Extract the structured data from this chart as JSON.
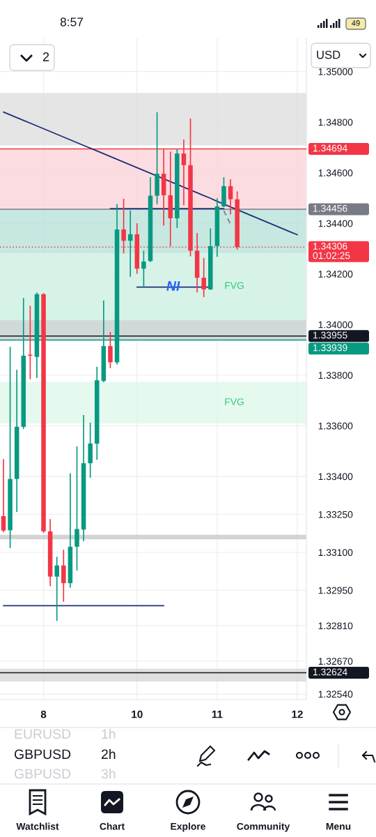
{
  "chart_data": {
    "type": "candlestick",
    "title": "GBPUSD",
    "subtitle": "2h",
    "categories": [
      null,
      null,
      null,
      null,
      null,
      null,
      "8",
      null,
      null,
      null,
      null,
      null,
      null,
      null,
      null,
      null,
      null,
      null,
      null,
      null,
      "10",
      null,
      null,
      null,
      null,
      null,
      null,
      null,
      null,
      null,
      null,
      null,
      "11",
      null,
      null,
      null,
      null,
      null,
      null,
      null,
      null,
      null,
      null,
      null,
      "12"
    ],
    "ohlc": [
      [
        1.33243,
        1.33466,
        1.33182,
        1.33186
      ],
      [
        1.33187,
        1.3391,
        1.33119,
        1.3339
      ],
      [
        1.3339,
        1.33819,
        1.33262,
        1.33596
      ],
      [
        1.33596,
        1.34103,
        1.3359,
        1.33877
      ],
      [
        1.33881,
        1.34072,
        1.33786,
        1.33877
      ],
      [
        1.33872,
        1.34125,
        1.33791,
        1.3412
      ],
      [
        1.3412,
        1.34122,
        1.33179,
        1.33183
      ],
      [
        1.33183,
        1.33229,
        1.32969,
        1.33004
      ],
      [
        1.33004,
        1.3308,
        1.32831,
        1.33048
      ],
      [
        1.33048,
        1.33108,
        1.32907,
        1.32978
      ],
      [
        1.32978,
        1.3341,
        1.32963,
        1.33122
      ],
      [
        1.33122,
        1.33516,
        1.3303,
        1.33192
      ],
      [
        1.3319,
        1.3364,
        1.33146,
        1.33452
      ],
      [
        1.33452,
        1.3361,
        1.33397,
        1.3353
      ],
      [
        1.33529,
        1.33831,
        1.33468,
        1.3378
      ],
      [
        1.33777,
        1.34093,
        1.33775,
        1.33915
      ],
      [
        1.33915,
        1.33968,
        1.3383,
        1.33851
      ],
      [
        1.33851,
        1.34474,
        1.33844,
        1.34376
      ],
      [
        1.34376,
        1.34495,
        1.34283,
        1.34331
      ],
      [
        1.34331,
        1.34449,
        1.34191,
        1.34357
      ],
      [
        1.34357,
        1.34398,
        1.34203,
        1.34221
      ],
      [
        1.34221,
        1.3429,
        1.34148,
        1.34249
      ],
      [
        1.34251,
        1.3458,
        1.34249,
        1.34509
      ],
      [
        1.34509,
        1.34837,
        1.34478,
        1.34596
      ],
      [
        1.34596,
        1.3469,
        1.34393,
        1.34511
      ],
      [
        1.34511,
        1.34681,
        1.34311,
        1.3442
      ],
      [
        1.3442,
        1.3469,
        1.34384,
        1.34676
      ],
      [
        1.34676,
        1.34729,
        1.34474,
        1.3463
      ],
      [
        1.3463,
        1.34812,
        1.34272,
        1.34292
      ],
      [
        1.34292,
        1.34359,
        1.34129,
        1.34185
      ],
      [
        1.34185,
        1.34261,
        1.34111,
        1.34139
      ],
      [
        1.34139,
        1.34378,
        1.34139,
        1.3431
      ],
      [
        1.3431,
        1.34497,
        1.3427,
        1.34467
      ],
      [
        1.34467,
        1.3458,
        1.34466,
        1.34547
      ],
      [
        1.34547,
        1.34572,
        1.34437,
        1.34495
      ],
      [
        1.34495,
        1.34524,
        1.34299,
        1.34306
      ],
      null,
      null,
      null,
      null,
      null,
      null,
      null,
      null,
      null
    ],
    "colors": [
      "#f23645",
      "#089981",
      "#089981",
      "#089981",
      "#f23645",
      "#089981",
      "#f23645",
      "#f23645",
      "#089981",
      "#f23645",
      "#089981",
      "#089981",
      "#089981",
      "#089981",
      "#089981",
      "#089981",
      "#f23645",
      "#089981",
      "#f23645",
      "#089981",
      "#f23645",
      "#089981",
      "#089981",
      "#089981",
      "#f23645",
      "#f23645",
      "#089981",
      "#f23645",
      "#f23645",
      "#f23645",
      "#f23645",
      "#089981",
      "#089981",
      "#089981",
      "#f23645",
      "#f23645",
      null,
      null,
      null,
      null,
      null,
      null,
      null,
      null,
      null
    ],
    "series": [
      {
        "type": "line",
        "color": "#1f2f7a",
        "line_style": "solid",
        "values": [
          1.3484,
          1.34829,
          1.34818,
          1.34807,
          1.34796,
          1.34785,
          1.34774,
          1.34763,
          1.34752,
          1.34741,
          1.3473,
          1.34719,
          1.34708,
          1.34697,
          1.34686,
          1.34675,
          1.34664,
          1.34653,
          1.34642,
          1.34631,
          1.3462,
          1.34609,
          1.34598,
          1.34587,
          1.34576,
          1.34565,
          1.34554,
          1.34543,
          1.34532,
          1.34521,
          1.3451,
          1.34499,
          1.34487,
          1.34476,
          1.34465,
          1.34454,
          1.34443,
          1.34432,
          1.34421,
          1.3441,
          1.34399,
          1.34388,
          1.34377,
          1.34366,
          1.34355
        ]
      },
      {
        "type": "line",
        "color": "#1f2f7a",
        "line_style": "solid",
        "values": [
          null,
          null,
          null,
          null,
          null,
          null,
          null,
          null,
          null,
          null,
          null,
          null,
          null,
          null,
          null,
          null,
          1.34458,
          1.34458,
          1.34458,
          1.34458,
          1.34458,
          1.34458,
          1.34458,
          1.34458,
          1.34458,
          1.34458,
          1.34458,
          1.34458,
          1.34458,
          1.34458,
          1.34458,
          1.34458,
          1.34458,
          1.34458,
          null,
          null,
          null,
          null,
          null,
          null,
          null,
          null,
          null,
          null,
          null
        ]
      },
      {
        "type": "line",
        "color": "#1f2f7a",
        "line_style": "solid",
        "values": [
          null,
          null,
          null,
          null,
          null,
          null,
          null,
          null,
          null,
          null,
          null,
          null,
          null,
          null,
          null,
          null,
          null,
          null,
          null,
          null,
          1.34148,
          1.34148,
          1.34148,
          1.34148,
          1.34148,
          1.34148,
          1.34148,
          1.34148,
          1.34148,
          1.34148,
          1.34148,
          1.34148,
          null,
          null,
          null,
          null,
          null,
          null,
          null,
          null,
          null,
          null,
          null,
          null,
          null
        ]
      },
      {
        "type": "line",
        "color": "#1f2f7a",
        "line_style": "solid",
        "values": [
          1.32889,
          1.32889,
          1.32889,
          1.32889,
          1.32889,
          1.32889,
          1.32889,
          1.32889,
          1.32889,
          1.32889,
          1.32889,
          1.32889,
          1.32889,
          1.32889,
          1.32889,
          1.32889,
          1.32889,
          1.32889,
          1.32889,
          1.32889,
          1.32889,
          1.32889,
          1.32889,
          1.32889,
          1.32889,
          null,
          null,
          null,
          null,
          null,
          null,
          null,
          null,
          null,
          null,
          null,
          null,
          null,
          null,
          null,
          null,
          null,
          null,
          null,
          null
        ]
      },
      {
        "type": "line",
        "color": "#787b86",
        "line_style": "dashed",
        "values": [
          null,
          null,
          null,
          null,
          null,
          null,
          null,
          null,
          null,
          null,
          null,
          null,
          null,
          null,
          null,
          null,
          null,
          null,
          null,
          null,
          null,
          null,
          null,
          null,
          null,
          null,
          null,
          null,
          null,
          null,
          null,
          null,
          null,
          1.3445,
          1.34396,
          null,
          null,
          null,
          null,
          null,
          null,
          null,
          null,
          null,
          null
        ]
      }
    ],
    "ylim": [
      1.32518,
      1.35131
    ],
    "yticks": [
      {
        "value": 1.35,
        "label": "1.35000"
      },
      {
        "value": 1.348,
        "label": "1.34800"
      },
      {
        "value": 1.346,
        "label": "1.34600"
      },
      {
        "value": 1.344,
        "label": "1.34400"
      },
      {
        "value": 1.342,
        "label": "1.34200"
      },
      {
        "value": 1.34,
        "label": "1.34000"
      },
      {
        "value": 1.338,
        "label": "1.33800"
      },
      {
        "value": 1.336,
        "label": "1.33600"
      },
      {
        "value": 1.334,
        "label": "1.33400"
      },
      {
        "value": 1.3325,
        "label": "1.33250"
      },
      {
        "value": 1.331,
        "label": "1.33100"
      },
      {
        "value": 1.3295,
        "label": "1.32950"
      },
      {
        "value": 1.3281,
        "label": "1.32810"
      },
      {
        "value": 1.3267,
        "label": "1.32670"
      },
      {
        "value": 1.3254,
        "label": "1.32540"
      }
    ],
    "grid": true,
    "bands": [
      {
        "axis": "y",
        "from": 1.34456,
        "to": 1.34694,
        "color": "#f9d2d7"
      },
      {
        "axis": "y",
        "from": 1.33939,
        "to": 1.34456,
        "color": "#b4e0d7"
      },
      {
        "axis": "y",
        "from": 1.34019,
        "to": 1.34283,
        "label": "FVG",
        "color": "#dcf7ea"
      },
      {
        "axis": "y",
        "from": 1.33609,
        "to": 1.33774,
        "label": "FVG",
        "color": "#dcf7ea"
      },
      {
        "axis": "y",
        "from": 1.34708,
        "to": 1.34915,
        "color": "#dcdcdc"
      },
      {
        "axis": "y",
        "from": 1.33937,
        "to": 1.34016,
        "color": "#d4d4d4"
      },
      {
        "axis": "y",
        "from": 1.33151,
        "to": 1.33169,
        "color": "#c4c4c4"
      },
      {
        "axis": "y",
        "from": 1.3259,
        "to": 1.3264,
        "color": "#d4d4d4"
      }
    ],
    "ref_lines": [
      {
        "axis": "y",
        "value": 1.34694,
        "label": "1.34694",
        "color": "#f23645",
        "line_style": "solid"
      },
      {
        "axis": "y",
        "value": 1.34456,
        "label": "1.34456",
        "color": "#787b86",
        "line_style": "solid"
      },
      {
        "axis": "y",
        "value": 1.34306,
        "label": "1.34306\n01:02:25",
        "color": "#f23645",
        "line_style": "dotted"
      },
      {
        "axis": "y",
        "value": 1.33955,
        "label": "1.33955",
        "color": "#131722",
        "line_style": "solid"
      },
      {
        "axis": "y",
        "value": 1.33939,
        "label": "1.33939",
        "color": "#089981",
        "line_style": "solid"
      },
      {
        "axis": "y",
        "value": 1.32624,
        "label": "1.32624",
        "color": "#131722",
        "line_style": "solid"
      }
    ],
    "annotations": [
      {
        "text": "NI",
        "y": 1.34148
      },
      "8:57",
      "49",
      "2",
      "USD",
      "EURUSD",
      "1h",
      "GBPUSD",
      "3h",
      "Watchlist",
      "Chart",
      "Explore",
      "Community",
      "Menu"
    ]
  }
}
